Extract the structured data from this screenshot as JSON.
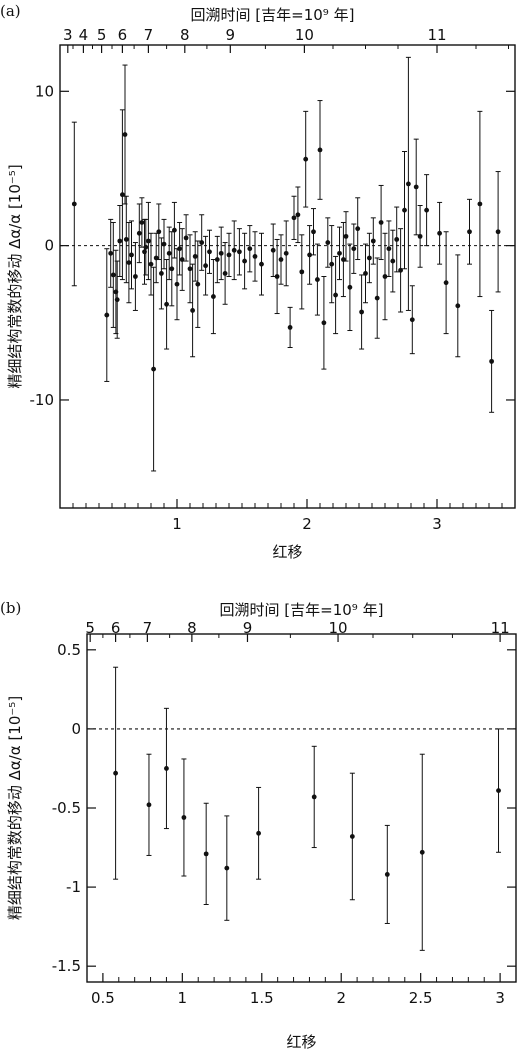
{
  "chart_data": [
    {
      "panel_label": "(a)",
      "type": "scatter",
      "xlabel": "红移",
      "ylabel": "精细结构常数的移动 Δα/α [10⁻⁵]",
      "top_axis_title": "回溯时间 [吉年=10⁹ 年]",
      "xlim": [
        0.1,
        3.6
      ],
      "ylim": [
        -17,
        13
      ],
      "xticks": [
        1,
        2,
        3
      ],
      "xticks_minor": [
        0.2,
        0.3,
        0.4,
        0.5,
        0.6,
        0.7,
        0.8,
        0.9,
        1.1,
        1.2,
        1.3,
        1.4,
        1.5,
        1.6,
        1.7,
        1.8,
        1.9,
        2.1,
        2.2,
        2.3,
        2.4,
        2.5,
        2.6,
        2.7,
        2.8,
        2.9,
        3.1,
        3.2,
        3.3,
        3.4,
        3.5
      ],
      "yticks": [
        -10,
        0,
        10
      ],
      "top_ticks": [
        {
          "label": "3",
          "z": 0.16
        },
        {
          "label": "4",
          "z": 0.28
        },
        {
          "label": "5",
          "z": 0.42
        },
        {
          "label": "6",
          "z": 0.58
        },
        {
          "label": "7",
          "z": 0.78
        },
        {
          "label": "8",
          "z": 1.06
        },
        {
          "label": "9",
          "z": 1.41
        },
        {
          "label": "10",
          "z": 1.98
        },
        {
          "label": "11",
          "z": 3.0
        }
      ],
      "top_minor_ticks": [
        0.2,
        0.35,
        0.5,
        0.67,
        0.92,
        1.23,
        1.68,
        2.2,
        2.45,
        2.7,
        3.3,
        3.55
      ],
      "reference_line": 0,
      "points": [
        [
          0.21,
          2.7,
          5.3
        ],
        [
          0.46,
          -4.5,
          4.3
        ],
        [
          0.49,
          -0.5,
          2.2
        ],
        [
          0.51,
          -1.9,
          3.4
        ],
        [
          0.53,
          -3.0,
          2.7
        ],
        [
          0.54,
          -3.5,
          2.5
        ],
        [
          0.56,
          0.3,
          2.3
        ],
        [
          0.58,
          3.3,
          5.5
        ],
        [
          0.6,
          7.2,
          4.5
        ],
        [
          0.61,
          0.4,
          2.8
        ],
        [
          0.63,
          -1.1,
          2.6
        ],
        [
          0.65,
          -0.6,
          2.2
        ],
        [
          0.68,
          -2.0,
          2.2
        ],
        [
          0.71,
          0.8,
          1.9
        ],
        [
          0.73,
          1.5,
          1.6
        ],
        [
          0.75,
          -0.4,
          2.1
        ],
        [
          0.76,
          -0.1,
          1.8
        ],
        [
          0.78,
          0.3,
          2.5
        ],
        [
          0.8,
          -1.2,
          2.0
        ],
        [
          0.82,
          -8.0,
          6.6
        ],
        [
          0.84,
          -0.8,
          1.6
        ],
        [
          0.86,
          0.9,
          1.8
        ],
        [
          0.88,
          -1.8,
          2.3
        ],
        [
          0.9,
          0.1,
          1.6
        ],
        [
          0.92,
          -3.8,
          2.9
        ],
        [
          0.94,
          -0.5,
          1.7
        ],
        [
          0.96,
          -1.5,
          2.4
        ],
        [
          0.98,
          1.0,
          1.8
        ],
        [
          1.0,
          -2.5,
          2.3
        ],
        [
          1.02,
          -0.2,
          1.7
        ],
        [
          1.04,
          -0.9,
          2.0
        ],
        [
          1.07,
          0.5,
          1.5
        ],
        [
          1.1,
          -1.5,
          2.2
        ],
        [
          1.12,
          -4.2,
          3.0
        ],
        [
          1.14,
          -0.7,
          1.6
        ],
        [
          1.16,
          -2.5,
          2.8
        ],
        [
          1.19,
          0.2,
          1.8
        ],
        [
          1.22,
          -1.3,
          1.9
        ],
        [
          1.25,
          -0.4,
          1.4
        ],
        [
          1.28,
          -3.3,
          2.4
        ],
        [
          1.31,
          -0.9,
          1.5
        ],
        [
          1.34,
          -0.5,
          1.7
        ],
        [
          1.37,
          -1.8,
          2.0
        ],
        [
          1.4,
          -0.6,
          1.4
        ],
        [
          1.44,
          -0.3,
          1.9
        ],
        [
          1.48,
          -0.4,
          1.5
        ],
        [
          1.52,
          -1.0,
          1.8
        ],
        [
          1.56,
          -0.2,
          1.5
        ],
        [
          1.6,
          -0.7,
          1.6
        ],
        [
          1.65,
          -1.2,
          2.0
        ],
        [
          1.74,
          -0.3,
          1.7
        ],
        [
          1.77,
          -2.0,
          2.4
        ],
        [
          1.8,
          -0.9,
          1.6
        ],
        [
          1.84,
          -0.5,
          2.1
        ],
        [
          1.87,
          -5.3,
          1.3
        ],
        [
          1.9,
          1.8,
          1.4
        ],
        [
          1.93,
          2.0,
          1.8
        ],
        [
          1.96,
          -1.7,
          2.4
        ],
        [
          1.99,
          5.6,
          3.1
        ],
        [
          2.02,
          -0.6,
          1.9
        ],
        [
          2.05,
          0.9,
          1.5
        ],
        [
          2.08,
          -2.2,
          2.3
        ],
        [
          2.1,
          6.2,
          3.2
        ],
        [
          2.13,
          -5.0,
          3.0
        ],
        [
          2.16,
          0.2,
          1.6
        ],
        [
          2.19,
          -1.2,
          2.5
        ],
        [
          2.22,
          -3.2,
          2.5
        ],
        [
          2.25,
          -0.5,
          1.7
        ],
        [
          2.28,
          -0.9,
          2.4
        ],
        [
          2.3,
          0.6,
          1.6
        ],
        [
          2.33,
          -2.7,
          2.8
        ],
        [
          2.36,
          -0.2,
          1.6
        ],
        [
          2.39,
          1.1,
          2.0
        ],
        [
          2.42,
          -4.3,
          2.4
        ],
        [
          2.45,
          -1.8,
          1.9
        ],
        [
          2.48,
          -0.8,
          1.6
        ],
        [
          2.51,
          0.3,
          1.5
        ],
        [
          2.54,
          -3.4,
          2.6
        ],
        [
          2.57,
          1.5,
          2.4
        ],
        [
          2.6,
          -2.0,
          2.8
        ],
        [
          2.63,
          -0.2,
          1.8
        ],
        [
          2.66,
          -1.0,
          2.0
        ],
        [
          2.69,
          0.4,
          2.1
        ],
        [
          2.72,
          -1.6,
          2.7
        ],
        [
          2.75,
          2.3,
          3.8
        ],
        [
          2.78,
          4.0,
          8.2
        ],
        [
          2.81,
          -4.8,
          2.2
        ],
        [
          2.84,
          3.8,
          3.1
        ],
        [
          2.87,
          0.6,
          2.0
        ],
        [
          2.92,
          2.3,
          2.3
        ],
        [
          3.02,
          0.8,
          2.0
        ],
        [
          3.07,
          -2.4,
          3.3
        ],
        [
          3.16,
          -3.9,
          3.3
        ],
        [
          3.25,
          0.9,
          2.1
        ],
        [
          3.33,
          2.7,
          6.0
        ],
        [
          3.42,
          -7.5,
          3.3
        ],
        [
          3.47,
          0.9,
          3.9
        ]
      ]
    },
    {
      "panel_label": "(b)",
      "type": "scatter",
      "xlabel": "红移",
      "ylabel": "精细结构常数的移动 Δα/α [10⁻⁵]",
      "top_axis_title": "回溯时间 [吉年=10⁹ 年]",
      "xlim": [
        0.4,
        3.1
      ],
      "ylim": [
        -1.6,
        0.6
      ],
      "xticks": [
        0.5,
        1,
        1.5,
        2,
        2.5,
        3
      ],
      "xtick_labels": [
        "0.5",
        "1",
        "1.5",
        "2",
        "2.5",
        "3"
      ],
      "xticks_minor": [
        0.6,
        0.7,
        0.8,
        0.9,
        1.1,
        1.2,
        1.3,
        1.4,
        1.6,
        1.7,
        1.8,
        1.9,
        2.1,
        2.2,
        2.3,
        2.4,
        2.6,
        2.7,
        2.8,
        2.9
      ],
      "yticks": [
        0.5,
        0,
        -0.5,
        -1,
        -1.5
      ],
      "ytick_labels": [
        "0.5",
        "0",
        "-0.5",
        "-1",
        "-1.5"
      ],
      "top_ticks": [
        {
          "label": "5",
          "z": 0.42
        },
        {
          "label": "6",
          "z": 0.58
        },
        {
          "label": "7",
          "z": 0.78
        },
        {
          "label": "8",
          "z": 1.06
        },
        {
          "label": "9",
          "z": 1.41
        },
        {
          "label": "10",
          "z": 1.98
        },
        {
          "label": "11",
          "z": 3.0
        }
      ],
      "top_minor_ticks": [
        0.5,
        0.67,
        0.92,
        1.23,
        1.68,
        2.2,
        2.45,
        2.7
      ],
      "reference_line": 0,
      "points": [
        [
          0.58,
          -0.28,
          0.67
        ],
        [
          0.79,
          -0.48,
          0.32
        ],
        [
          0.9,
          -0.25,
          0.38
        ],
        [
          1.01,
          -0.56,
          0.37
        ],
        [
          1.15,
          -0.79,
          0.32
        ],
        [
          1.28,
          -0.88,
          0.33
        ],
        [
          1.48,
          -0.66,
          0.29
        ],
        [
          1.83,
          -0.43,
          0.32
        ],
        [
          2.07,
          -0.68,
          0.4
        ],
        [
          2.29,
          -0.92,
          0.31
        ],
        [
          2.51,
          -0.78,
          0.62
        ],
        [
          2.99,
          -0.39,
          0.39
        ]
      ]
    }
  ]
}
